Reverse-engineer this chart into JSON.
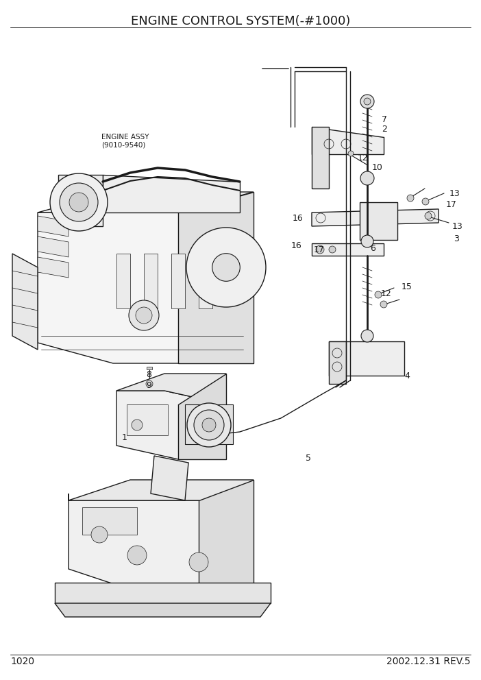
{
  "title": "ENGINE CONTROL SYSTEM(-#1000)",
  "page_number": "1020",
  "date_rev": "2002.12.31 REV.5",
  "engine_label_line1": "ENGINE ASSY",
  "engine_label_line2": "(9010-9540)",
  "bg_color": "#ffffff",
  "line_color": "#1a1a1a",
  "title_fontsize": 13,
  "label_fontsize": 9,
  "small_label_fontsize": 7.5,
  "footer_fontsize": 10,
  "fig_w": 7.02,
  "fig_h": 9.92,
  "dpi": 100
}
